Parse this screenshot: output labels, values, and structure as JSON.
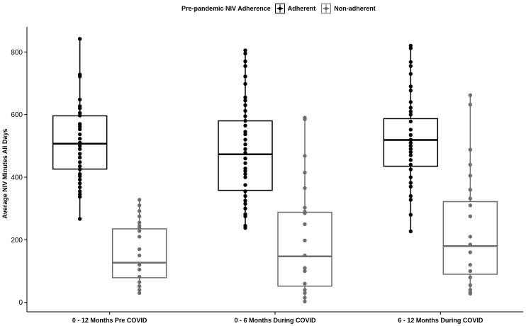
{
  "legend": {
    "title": "Pre-pandemic NIV Adherence",
    "items": [
      {
        "label": "Adherent",
        "color": "#000000"
      },
      {
        "label": "Non-adherent",
        "color": "#6e6e6e"
      }
    ]
  },
  "chart_data": {
    "type": "box",
    "title": "",
    "xlabel": "",
    "ylabel": "Average NIV Minutes All Days",
    "ylim": [
      -30,
      880
    ],
    "yticks": [
      0,
      200,
      400,
      600,
      800
    ],
    "grid": false,
    "legend_position": "top",
    "categories": [
      "0 - 12 Months Pre COVID",
      "0 - 6 Months During COVID",
      "6 - 12 Months During COVID"
    ],
    "series": [
      {
        "name": "Adherent",
        "color": "#000000",
        "boxes": [
          {
            "q1": 426,
            "median": 507,
            "q3": 596,
            "points": [
              842,
              728,
              722,
              648,
              627,
              620,
              605,
              597,
              570,
              562,
              553,
              537,
              523,
              510,
              500,
              490,
              475,
              463,
              448,
              435,
              425,
              410,
              403,
              392,
              380,
              368,
              355,
              345,
              337,
              267
            ]
          },
          {
            "q1": 358,
            "median": 473,
            "q3": 580,
            "points": [
              805,
              795,
              770,
              755,
              722,
              698,
              655,
              645,
              630,
              612,
              595,
              580,
              565,
              545,
              537,
              520,
              505,
              490,
              478,
              460,
              445,
              428,
              420,
              410,
              400,
              375,
              355,
              340,
              325,
              315,
              300,
              282,
              275,
              245,
              238
            ]
          },
          {
            "q1": 435,
            "median": 519,
            "q3": 587,
            "points": [
              820,
              812,
              768,
              755,
              730,
              690,
              677,
              640,
              622,
              610,
              600,
              578,
              552,
              535,
              520,
              510,
              500,
              490,
              480,
              470,
              455,
              440,
              425,
              400,
              382,
              370,
              340,
              328,
              280,
              227
            ]
          }
        ]
      },
      {
        "name": "Non-adherent",
        "color": "#6e6e6e",
        "boxes": [
          {
            "q1": 79,
            "median": 127,
            "q3": 235,
            "points": [
              328,
              310,
              292,
              275,
              255,
              245,
              238,
              228,
              210,
              170,
              150,
              120,
              105,
              82,
              65,
              52,
              40,
              30
            ]
          },
          {
            "q1": 52,
            "median": 147,
            "q3": 288,
            "points": [
              590,
              585,
              468,
              415,
              365,
              303,
              290,
              285,
              250,
              198,
              150,
              110,
              100,
              60,
              40,
              30,
              15,
              3
            ]
          },
          {
            "q1": 90,
            "median": 180,
            "q3": 322,
            "points": [
              662,
              632,
              488,
              440,
              405,
              360,
              332,
              310,
              275,
              210,
              185,
              160,
              120,
              100,
              80,
              55,
              40,
              32,
              28
            ]
          }
        ]
      }
    ]
  }
}
